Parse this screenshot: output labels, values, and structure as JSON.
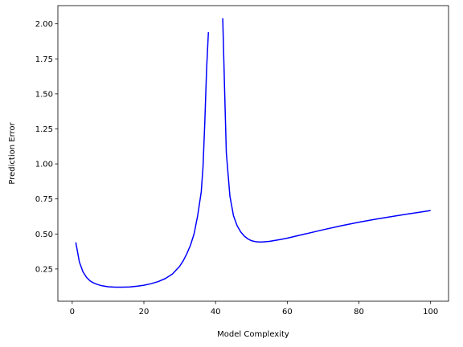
{
  "chart_data": {
    "type": "line",
    "title": "",
    "xlabel": "Model Complexity",
    "ylabel": "Prediction Error",
    "xlim": [
      -4,
      105
    ],
    "ylim": [
      0.02,
      2.13
    ],
    "xticks": [
      0,
      20,
      40,
      60,
      80,
      100
    ],
    "xtick_labels": [
      "0",
      "20",
      "40",
      "60",
      "80",
      "100"
    ],
    "yticks": [
      0.25,
      0.5,
      0.75,
      1.0,
      1.25,
      1.5,
      1.75,
      2.0
    ],
    "ytick_labels": [
      "0.25",
      "0.50",
      "0.75",
      "1.00",
      "1.25",
      "1.50",
      "1.75",
      "2.00"
    ],
    "grid": false,
    "line_color": "#0000ff",
    "series": [
      {
        "segments": [
          {
            "x": [
              1,
              2,
              3,
              4,
              5,
              6,
              7,
              8,
              10,
              12,
              14,
              16,
              18,
              20,
              22,
              24,
              26,
              28,
              30,
              31,
              32,
              33,
              34,
              35,
              36,
              36.5,
              37,
              37.5,
              38
            ],
            "y": [
              0.44,
              0.3,
              0.23,
              0.19,
              0.165,
              0.15,
              0.14,
              0.132,
              0.123,
              0.12,
              0.12,
              0.122,
              0.127,
              0.134,
              0.145,
              0.16,
              0.182,
              0.215,
              0.27,
              0.31,
              0.36,
              0.42,
              0.5,
              0.63,
              0.8,
              0.98,
              1.3,
              1.68,
              1.94
            ]
          },
          {
            "x": [
              42,
              42.5,
              43,
              44,
              45,
              46,
              47,
              48,
              49,
              50,
              51,
              52,
              53,
              55,
              58,
              60,
              65,
              70,
              75,
              80,
              85,
              90,
              95,
              100
            ],
            "y": [
              2.04,
              1.55,
              1.08,
              0.77,
              0.63,
              0.56,
              0.515,
              0.485,
              0.465,
              0.452,
              0.446,
              0.443,
              0.443,
              0.447,
              0.46,
              0.47,
              0.5,
              0.53,
              0.558,
              0.584,
              0.607,
              0.628,
              0.648,
              0.667
            ]
          }
        ]
      }
    ]
  }
}
